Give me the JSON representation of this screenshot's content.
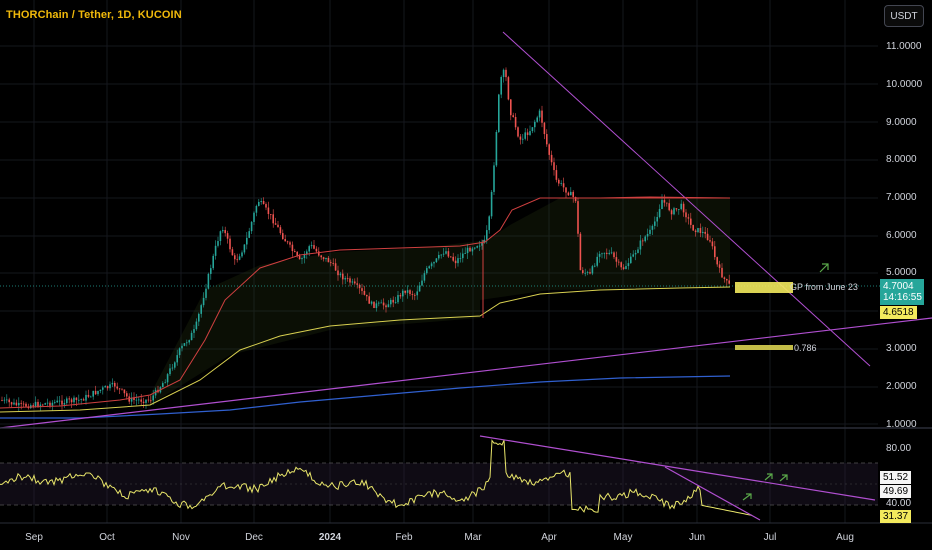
{
  "header": {
    "title": "THORChain / Tether, 1D, KUCOIN",
    "currency_button": "USDT"
  },
  "price_axis": {
    "ticks": [
      "11.0000",
      "10.0000",
      "9.0000",
      "8.0000",
      "7.0000",
      "6.0000",
      "5.0000",
      "3.0000",
      "2.0000",
      "1.0000"
    ]
  },
  "price_badges": {
    "last_price": "4.7004",
    "countdown": "14:16:55",
    "level": "4.6518"
  },
  "annotations": {
    "gp_label": "GP from June 23",
    "fib_label": "0.786"
  },
  "rsi_axis": {
    "tick_80": "80.00",
    "badge_1": "51.52",
    "badge_2": "49.69",
    "tick_40": "40.00",
    "badge_3": "31.37"
  },
  "time_axis": {
    "labels": [
      {
        "text": "Sep",
        "bold": false
      },
      {
        "text": "Oct",
        "bold": false
      },
      {
        "text": "Nov",
        "bold": false
      },
      {
        "text": "Dec",
        "bold": false
      },
      {
        "text": "2024",
        "bold": true
      },
      {
        "text": "Feb",
        "bold": false
      },
      {
        "text": "Mar",
        "bold": false
      },
      {
        "text": "Apr",
        "bold": false
      },
      {
        "text": "May",
        "bold": false
      },
      {
        "text": "Jun",
        "bold": false
      },
      {
        "text": "Jul",
        "bold": false
      },
      {
        "text": "Aug",
        "bold": false
      }
    ]
  },
  "colors": {
    "up": "#26a69a",
    "down": "#ef5350",
    "title": "#f0b90b",
    "trendline": "#b04fd0",
    "rsi": "#e8e56a"
  }
}
